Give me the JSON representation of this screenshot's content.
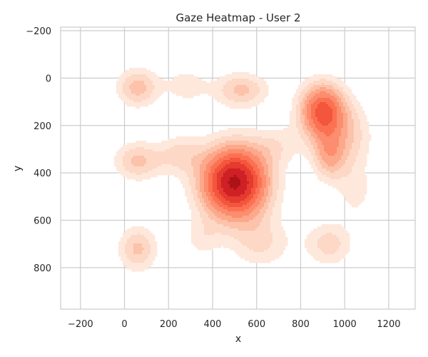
{
  "chart_data": {
    "type": "heatmap",
    "subtype": "kde-contour",
    "title": "Gaze Heatmap - User 2",
    "xlabel": "x",
    "ylabel": "y",
    "xlim": [
      -290,
      1320
    ],
    "ylim": [
      975,
      -215
    ],
    "y_inverted": true,
    "x_ticks": [
      -200,
      0,
      200,
      400,
      600,
      800,
      1000,
      1200
    ],
    "y_ticks": [
      -200,
      0,
      200,
      400,
      600,
      800
    ],
    "grid": true,
    "colormap": "Reds",
    "colors": [
      "#fee8dc",
      "#fdd8c6",
      "#fcc2aa",
      "#fca88a",
      "#fc8d6e",
      "#fb7252",
      "#f4553d",
      "#e53a2e",
      "#ce2025",
      "#ad1217"
    ],
    "gaze_clusters": [
      {
        "x": 500,
        "y": 440,
        "weight": 1.0,
        "spread_x": 110,
        "spread_y": 110
      },
      {
        "x": 900,
        "y": 140,
        "weight": 0.7,
        "spread_x": 75,
        "spread_y": 85
      },
      {
        "x": 930,
        "y": 330,
        "weight": 0.35,
        "spread_x": 55,
        "spread_y": 75
      },
      {
        "x": 530,
        "y": 50,
        "weight": 0.3,
        "spread_x": 90,
        "spread_y": 55
      },
      {
        "x": 60,
        "y": 40,
        "weight": 0.32,
        "spread_x": 70,
        "spread_y": 60
      },
      {
        "x": 60,
        "y": 350,
        "weight": 0.3,
        "spread_x": 80,
        "spread_y": 60
      },
      {
        "x": 60,
        "y": 720,
        "weight": 0.3,
        "spread_x": 65,
        "spread_y": 70
      },
      {
        "x": 930,
        "y": 700,
        "weight": 0.24,
        "spread_x": 80,
        "spread_y": 70
      },
      {
        "x": 620,
        "y": 700,
        "weight": 0.2,
        "spread_x": 100,
        "spread_y": 80
      },
      {
        "x": 250,
        "y": 320,
        "weight": 0.2,
        "spread_x": 70,
        "spread_y": 60
      },
      {
        "x": 280,
        "y": 30,
        "weight": 0.16,
        "spread_x": 70,
        "spread_y": 60
      },
      {
        "x": 1040,
        "y": 250,
        "weight": 0.2,
        "spread_x": 70,
        "spread_y": 100
      },
      {
        "x": 1050,
        "y": 480,
        "weight": 0.15,
        "spread_x": 60,
        "spread_y": 80
      },
      {
        "x": 350,
        "y": 680,
        "weight": 0.14,
        "spread_x": 60,
        "spread_y": 60
      },
      {
        "x": 700,
        "y": 280,
        "weight": 0.14,
        "spread_x": 80,
        "spread_y": 60
      }
    ]
  }
}
